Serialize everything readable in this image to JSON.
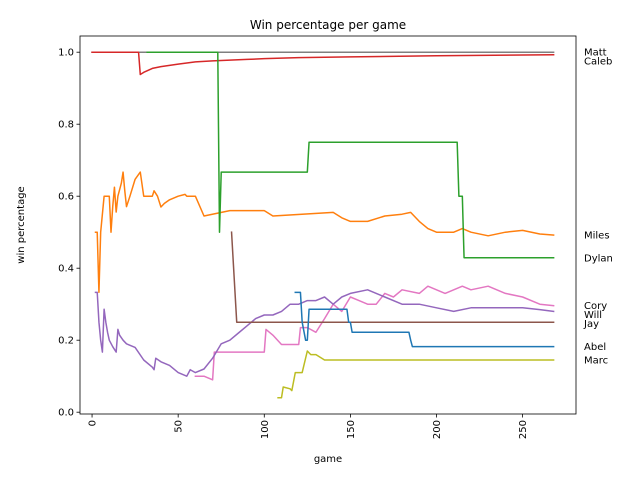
{
  "chart_data": {
    "type": "line",
    "title": "Win percentage per game",
    "xlabel": "game",
    "ylabel": "win percentage",
    "xlim": [
      -7,
      281
    ],
    "ylim": [
      -0.005,
      1.045
    ],
    "xticks": [
      0,
      50,
      100,
      150,
      200,
      250
    ],
    "yticks": [
      0.0,
      0.2,
      0.4,
      0.6,
      0.8,
      1.0
    ],
    "xtick_labels": [
      "0",
      "50",
      "100",
      "150",
      "200",
      "250"
    ],
    "ytick_labels": [
      "0.0",
      "0.2",
      "0.4",
      "0.6",
      "0.8",
      "1.0"
    ],
    "xtick_rotation": 90,
    "grid": false,
    "legend": "none",
    "series_labels_at": "right end",
    "series": [
      {
        "name": "Matt",
        "color": "#7f7f7f",
        "x": [
          0,
          268
        ],
        "y": [
          1.0,
          1.0
        ]
      },
      {
        "name": "Caleb",
        "color": "#d62728",
        "x": [
          0,
          27,
          28,
          30,
          35,
          40,
          50,
          60,
          70,
          80,
          90,
          100,
          120,
          150,
          200,
          268
        ],
        "y": [
          1.0,
          1.0,
          0.938,
          0.944,
          0.955,
          0.96,
          0.967,
          0.973,
          0.976,
          0.978,
          0.98,
          0.982,
          0.985,
          0.987,
          0.99,
          0.993
        ]
      },
      {
        "name": "Miles",
        "color": "#ff7f0e",
        "x": [
          2,
          3,
          4,
          5,
          7,
          10,
          11,
          12,
          13,
          14,
          15,
          17,
          18,
          19,
          20,
          22,
          25,
          28,
          30,
          35,
          36,
          38,
          40,
          42,
          45,
          50,
          54,
          55,
          60,
          65,
          80,
          100,
          105,
          140,
          145,
          150,
          160,
          170,
          180,
          185,
          190,
          195,
          200,
          210,
          215,
          220,
          230,
          240,
          250,
          260,
          268
        ],
        "y": [
          0.5,
          0.5,
          0.333,
          0.5,
          0.6,
          0.6,
          0.5,
          0.571,
          0.625,
          0.556,
          0.6,
          0.636,
          0.667,
          0.615,
          0.571,
          0.6,
          0.647,
          0.667,
          0.6,
          0.6,
          0.615,
          0.6,
          0.57,
          0.58,
          0.59,
          0.6,
          0.605,
          0.6,
          0.6,
          0.545,
          0.56,
          0.56,
          0.545,
          0.555,
          0.54,
          0.53,
          0.53,
          0.545,
          0.55,
          0.555,
          0.53,
          0.51,
          0.5,
          0.5,
          0.51,
          0.5,
          0.49,
          0.5,
          0.505,
          0.495,
          0.492
        ]
      },
      {
        "name": "Dylan",
        "color": "#2ca02c",
        "x": [
          32,
          73,
          74,
          75,
          125,
          126,
          212,
          213,
          215,
          216,
          268
        ],
        "y": [
          1.0,
          1.0,
          0.5,
          0.667,
          0.667,
          0.75,
          0.75,
          0.6,
          0.6,
          0.429,
          0.429
        ]
      },
      {
        "name": "Cory",
        "color": "#e377c2",
        "x": [
          60,
          65,
          70,
          71,
          72,
          100,
          101,
          105,
          110,
          120,
          121,
          125,
          130,
          135,
          140,
          145,
          150,
          155,
          160,
          165,
          170,
          175,
          180,
          190,
          195,
          200,
          205,
          210,
          215,
          220,
          230,
          240,
          250,
          260,
          268
        ],
        "y": [
          0.1,
          0.1,
          0.09,
          0.167,
          0.167,
          0.167,
          0.23,
          0.214,
          0.188,
          0.188,
          0.235,
          0.235,
          0.222,
          0.26,
          0.3,
          0.28,
          0.32,
          0.31,
          0.3,
          0.3,
          0.33,
          0.32,
          0.34,
          0.33,
          0.35,
          0.34,
          0.33,
          0.34,
          0.35,
          0.34,
          0.35,
          0.33,
          0.32,
          0.3,
          0.296
        ]
      },
      {
        "name": "Will",
        "color": "#9467bd",
        "x": [
          2,
          3,
          4,
          5,
          6,
          7,
          8,
          9,
          10,
          12,
          14,
          15,
          16,
          18,
          20,
          25,
          30,
          35,
          36,
          37,
          40,
          45,
          50,
          55,
          57,
          60,
          65,
          70,
          75,
          80,
          85,
          90,
          95,
          100,
          105,
          110,
          115,
          120,
          125,
          130,
          135,
          140,
          145,
          150,
          160,
          170,
          180,
          190,
          200,
          210,
          220,
          230,
          240,
          250,
          260,
          268
        ],
        "y": [
          0.333,
          0.333,
          0.25,
          0.2,
          0.167,
          0.286,
          0.25,
          0.222,
          0.2,
          0.182,
          0.167,
          0.23,
          0.214,
          0.2,
          0.19,
          0.18,
          0.145,
          0.125,
          0.118,
          0.15,
          0.14,
          0.13,
          0.11,
          0.1,
          0.118,
          0.11,
          0.12,
          0.15,
          0.19,
          0.2,
          0.22,
          0.24,
          0.26,
          0.27,
          0.27,
          0.28,
          0.3,
          0.3,
          0.31,
          0.31,
          0.32,
          0.3,
          0.32,
          0.33,
          0.34,
          0.32,
          0.3,
          0.3,
          0.29,
          0.28,
          0.29,
          0.29,
          0.29,
          0.29,
          0.285,
          0.28
        ]
      },
      {
        "name": "Jay",
        "color": "#8c564b",
        "x": [
          81,
          83,
          84,
          268
        ],
        "y": [
          0.5,
          0.333,
          0.25,
          0.25
        ]
      },
      {
        "name": "Abel",
        "color": "#1f77b4",
        "x": [
          118,
          121,
          122,
          124,
          125,
          126,
          148,
          149,
          150,
          151,
          152,
          184,
          185,
          186,
          187,
          268
        ],
        "y": [
          0.333,
          0.333,
          0.25,
          0.2,
          0.2,
          0.286,
          0.286,
          0.25,
          0.25,
          0.222,
          0.222,
          0.222,
          0.2,
          0.182,
          0.182,
          0.182
        ]
      },
      {
        "name": "Marc",
        "color": "#bcbd22",
        "x": [
          108,
          110,
          111,
          115,
          116,
          118,
          122,
          125,
          127,
          130,
          135,
          268
        ],
        "y": [
          0.04,
          0.04,
          0.07,
          0.065,
          0.06,
          0.11,
          0.11,
          0.17,
          0.16,
          0.16,
          0.145,
          0.145
        ]
      }
    ],
    "end_labels": [
      {
        "text": "Matt",
        "y": 1.0
      },
      {
        "text": "Caleb",
        "y": 0.993
      },
      {
        "text": "Miles",
        "y": 0.492
      },
      {
        "text": "Dylan",
        "y": 0.429
      },
      {
        "text": "Cory",
        "y": 0.296
      },
      {
        "text": "Will",
        "y": 0.28
      },
      {
        "text": "Jay",
        "y": 0.25
      },
      {
        "text": "Abel",
        "y": 0.182
      },
      {
        "text": "Marc",
        "y": 0.145
      }
    ]
  }
}
